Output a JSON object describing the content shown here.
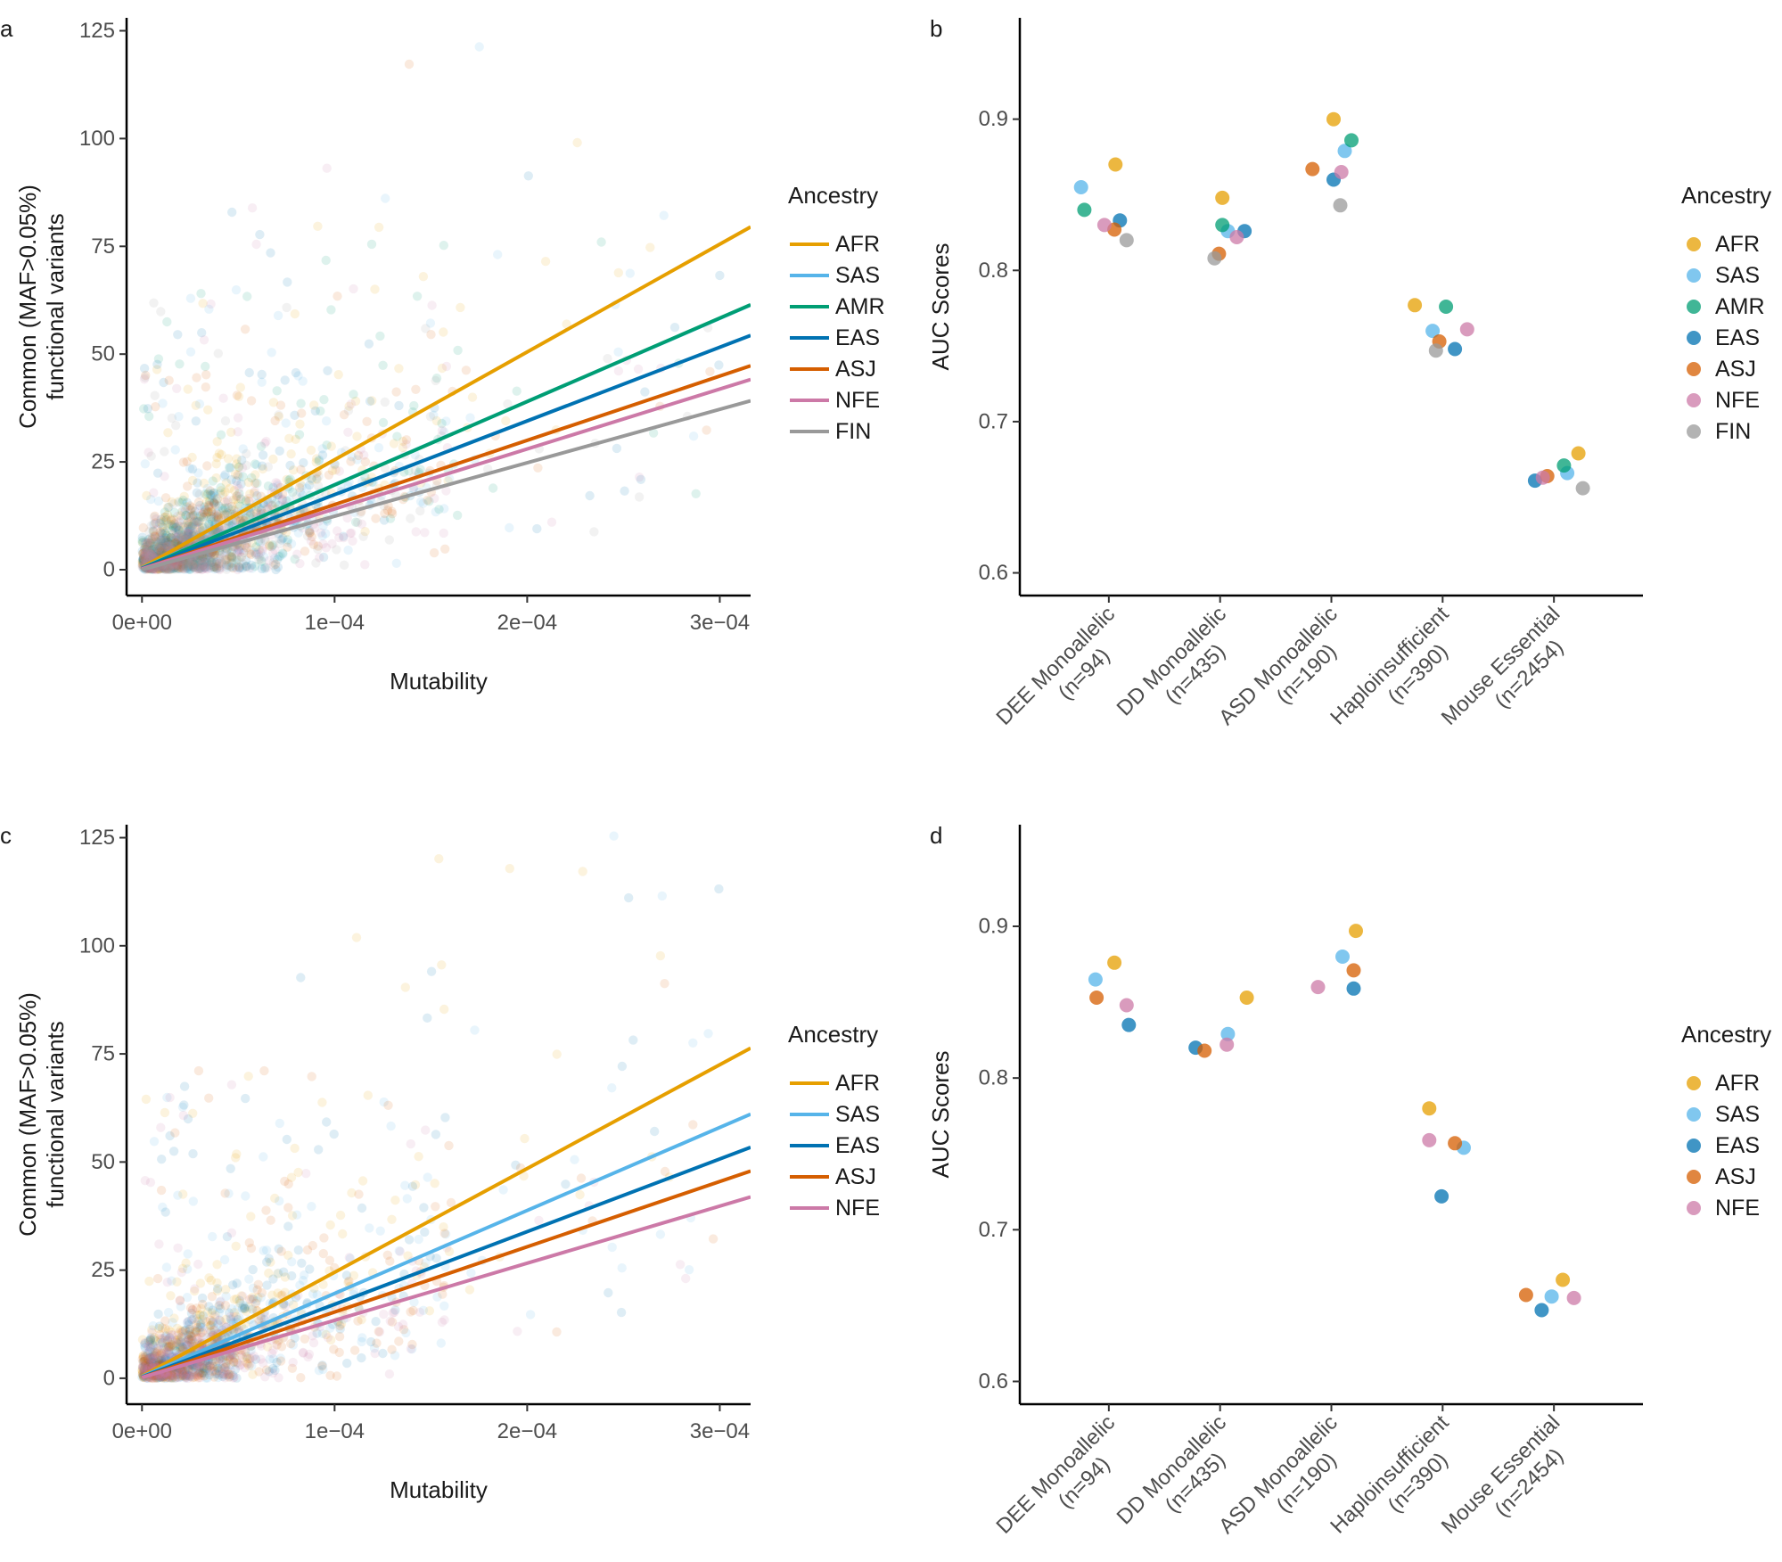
{
  "chart_data": [
    {
      "panel": "a",
      "type": "scatter",
      "subtype": "scatter with linear fits",
      "xlabel": "Mutability",
      "ylabel_lines": [
        "Common (MAF>0.05%)",
        "functional variants"
      ],
      "xlim": [
        -8e-06,
        0.000316
      ],
      "ylim": [
        -6,
        128
      ],
      "xticks": [
        0,
        0.0001,
        0.0002,
        0.0003
      ],
      "xtick_labels": [
        "0e+00",
        "1e−04",
        "2e−04",
        "3e−04"
      ],
      "yticks": [
        0,
        25,
        50,
        75,
        100,
        125
      ],
      "ytick_labels": [
        "0",
        "25",
        "50",
        "75",
        "100",
        "125"
      ],
      "legend_title": "Ancestry",
      "legend_position": "right",
      "series": [
        {
          "name": "AFR",
          "color": "#E69F00",
          "slope": 250000,
          "intercept": 0.5
        },
        {
          "name": "SAS",
          "color": "#56B4E9",
          "slope": 193000,
          "intercept": 0.4
        },
        {
          "name": "AMR",
          "color": "#009E73",
          "slope": 193500,
          "intercept": 0.3
        },
        {
          "name": "EAS",
          "color": "#0072B2",
          "slope": 171000,
          "intercept": 0.3
        },
        {
          "name": "ASJ",
          "color": "#D55E00",
          "slope": 149000,
          "intercept": 0.2
        },
        {
          "name": "NFE",
          "color": "#CC79A7",
          "slope": 139000,
          "intercept": 0.2
        },
        {
          "name": "FIN",
          "color": "#999999",
          "slope": 124000,
          "intercept": 0.0
        }
      ]
    },
    {
      "panel": "b",
      "type": "scatter",
      "subtype": "dot plot",
      "ylabel": "AUC Scores",
      "ylim": [
        0.585,
        0.967
      ],
      "yticks": [
        0.6,
        0.7,
        0.8,
        0.9
      ],
      "ytick_labels": [
        "0.6",
        "0.7",
        "0.8",
        "0.9"
      ],
      "categories": [
        [
          "DEE Monoallelic",
          "(n=94)"
        ],
        [
          "DD Monoallelic",
          "(n=435)"
        ],
        [
          "ASD Monoallelic",
          "(n=190)"
        ],
        [
          "Haploinsufficient",
          "(n=390)"
        ],
        [
          "Mouse Essential",
          "(n=2454)"
        ]
      ],
      "legend_title": "Ancestry",
      "legend_position": "right",
      "series": [
        {
          "name": "AFR",
          "color": "#E69F00",
          "values": [
            0.87,
            0.848,
            0.9,
            0.777,
            0.679
          ],
          "offsets": [
            0.06,
            0.02,
            0.02,
            -0.25,
            0.22
          ]
        },
        {
          "name": "SAS",
          "color": "#56B4E9",
          "values": [
            0.855,
            0.826,
            0.879,
            0.76,
            0.666
          ],
          "offsets": [
            -0.25,
            0.07,
            0.12,
            -0.09,
            0.12
          ]
        },
        {
          "name": "AMR",
          "color": "#009E73",
          "values": [
            0.84,
            0.83,
            0.886,
            0.776,
            0.671
          ],
          "offsets": [
            -0.22,
            0.02,
            0.18,
            0.03,
            0.09
          ]
        },
        {
          "name": "EAS",
          "color": "#0072B2",
          "values": [
            0.833,
            0.826,
            0.86,
            0.748,
            0.661
          ],
          "offsets": [
            0.1,
            0.22,
            0.02,
            0.11,
            -0.17
          ]
        },
        {
          "name": "ASJ",
          "color": "#D55E00",
          "values": [
            0.827,
            0.811,
            0.867,
            0.753,
            0.664
          ],
          "offsets": [
            0.05,
            -0.01,
            -0.17,
            -0.03,
            -0.06
          ]
        },
        {
          "name": "NFE",
          "color": "#CC79A7",
          "values": [
            0.83,
            0.822,
            0.865,
            0.761,
            0.663
          ],
          "offsets": [
            -0.04,
            0.15,
            0.09,
            0.22,
            -0.1
          ]
        },
        {
          "name": "FIN",
          "color": "#999999",
          "values": [
            0.82,
            0.808,
            0.843,
            0.747,
            0.656
          ],
          "offsets": [
            0.16,
            -0.05,
            0.08,
            -0.06,
            0.26
          ]
        }
      ]
    },
    {
      "panel": "c",
      "type": "scatter",
      "subtype": "scatter with linear fits",
      "xlabel": "Mutability",
      "ylabel_lines": [
        "Common (MAF>0.05%)",
        "functional variants"
      ],
      "xlim": [
        -8e-06,
        0.000316
      ],
      "ylim": [
        -6,
        128
      ],
      "xticks": [
        0,
        0.0001,
        0.0002,
        0.0003
      ],
      "xtick_labels": [
        "0e+00",
        "1e−04",
        "2e−04",
        "3e−04"
      ],
      "yticks": [
        0,
        25,
        50,
        75,
        100,
        125
      ],
      "ytick_labels": [
        "0",
        "25",
        "50",
        "75",
        "100",
        "125"
      ],
      "legend_title": "Ancestry",
      "legend_position": "right",
      "series": [
        {
          "name": "AFR",
          "color": "#E69F00",
          "slope": 240000,
          "intercept": 0.5
        },
        {
          "name": "SAS",
          "color": "#56B4E9",
          "slope": 192000,
          "intercept": 0.4
        },
        {
          "name": "EAS",
          "color": "#0072B2",
          "slope": 168000,
          "intercept": 0.3
        },
        {
          "name": "ASJ",
          "color": "#D55E00",
          "slope": 151000,
          "intercept": 0.2
        },
        {
          "name": "NFE",
          "color": "#CC79A7",
          "slope": 132000,
          "intercept": 0.2
        }
      ]
    },
    {
      "panel": "d",
      "type": "scatter",
      "subtype": "dot plot",
      "ylabel": "AUC Scores",
      "ylim": [
        0.585,
        0.967
      ],
      "yticks": [
        0.6,
        0.7,
        0.8,
        0.9
      ],
      "ytick_labels": [
        "0.6",
        "0.7",
        "0.8",
        "0.9"
      ],
      "categories": [
        [
          "DEE Monoallelic",
          "(n=94)"
        ],
        [
          "DD Monoallelic",
          "(n=435)"
        ],
        [
          "ASD Monoallelic",
          "(n=190)"
        ],
        [
          "Haploinsufficient",
          "(n=390)"
        ],
        [
          "Mouse Essential",
          "(n=2454)"
        ]
      ],
      "legend_title": "Ancestry",
      "legend_position": "right",
      "series": [
        {
          "name": "AFR",
          "color": "#E69F00",
          "values": [
            0.876,
            0.853,
            0.897,
            0.78,
            0.667
          ],
          "offsets": [
            0.05,
            0.24,
            0.22,
            -0.12,
            0.08
          ]
        },
        {
          "name": "SAS",
          "color": "#56B4E9",
          "values": [
            0.865,
            0.829,
            0.88,
            0.754,
            0.656
          ],
          "offsets": [
            -0.12,
            0.07,
            0.1,
            0.19,
            -0.02
          ]
        },
        {
          "name": "EAS",
          "color": "#0072B2",
          "values": [
            0.835,
            0.82,
            0.859,
            0.722,
            0.647
          ],
          "offsets": [
            0.18,
            -0.22,
            0.2,
            -0.01,
            -0.11
          ]
        },
        {
          "name": "ASJ",
          "color": "#D55E00",
          "values": [
            0.853,
            0.818,
            0.871,
            0.757,
            0.657
          ],
          "offsets": [
            -0.11,
            -0.14,
            0.2,
            0.11,
            -0.25
          ]
        },
        {
          "name": "NFE",
          "color": "#CC79A7",
          "values": [
            0.848,
            0.822,
            0.86,
            0.759,
            0.655
          ],
          "offsets": [
            0.16,
            0.06,
            -0.12,
            -0.12,
            0.18
          ]
        }
      ]
    }
  ]
}
